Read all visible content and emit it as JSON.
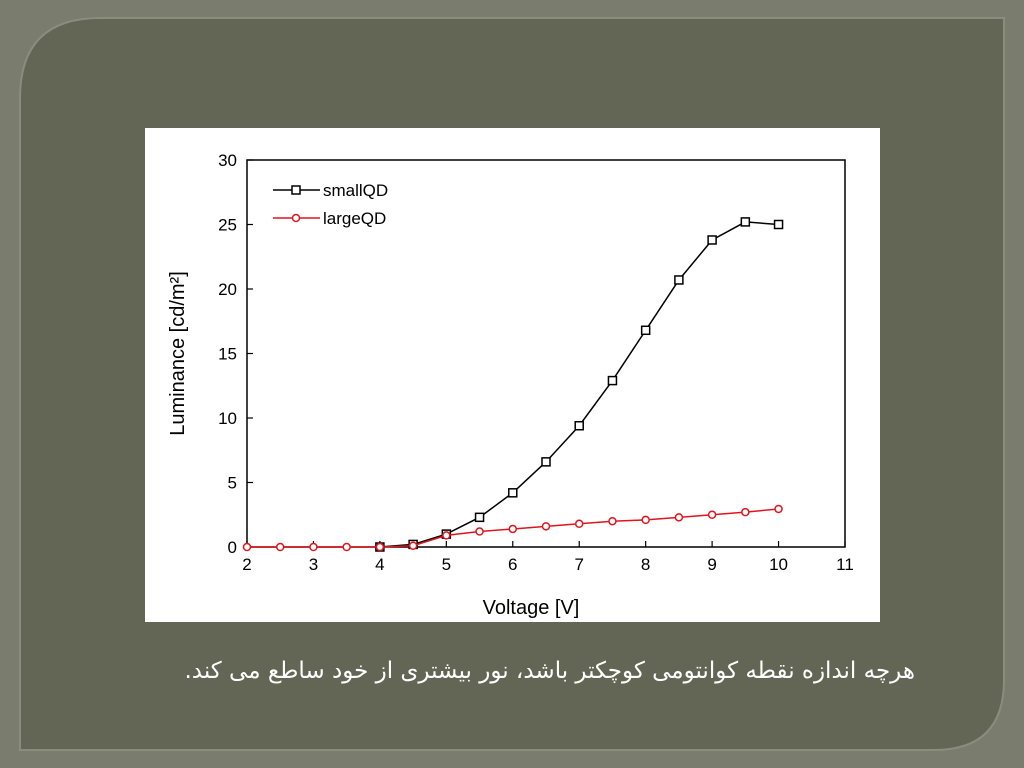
{
  "chart_data": {
    "type": "line",
    "x": [
      2,
      2.5,
      3,
      3.5,
      4,
      4.5,
      5,
      5.5,
      6,
      6.5,
      7,
      7.5,
      8,
      8.5,
      9,
      9.5,
      10
    ],
    "series": [
      {
        "name": "smallQD",
        "color": "#000000",
        "marker": "square",
        "values": [
          null,
          null,
          null,
          null,
          0,
          0.2,
          1.0,
          2.3,
          4.2,
          6.6,
          9.4,
          12.9,
          16.8,
          20.7,
          23.8,
          25.2,
          25.0
        ]
      },
      {
        "name": "largeQD",
        "color": "#e0141e",
        "marker": "circle",
        "values": [
          0,
          0,
          0,
          0,
          0,
          0.1,
          0.9,
          1.2,
          1.4,
          1.6,
          1.8,
          2.0,
          2.1,
          2.3,
          2.5,
          2.7,
          2.95
        ]
      }
    ],
    "x_label": "Voltage [V]",
    "y_label": "Luminance [cd/m²]",
    "xlim": [
      2,
      11
    ],
    "xticks": [
      2,
      3,
      4,
      5,
      6,
      7,
      8,
      9,
      10,
      11
    ],
    "ylim": [
      0,
      30
    ],
    "yticks": [
      0,
      5,
      10,
      15,
      20,
      25,
      30
    ],
    "legend": "upper-left",
    "grid": false
  },
  "caption": "هرچه اندازه نقطه کوانتومی کوچکتر باشد، نور بیشتری از خود ساطع می کند."
}
